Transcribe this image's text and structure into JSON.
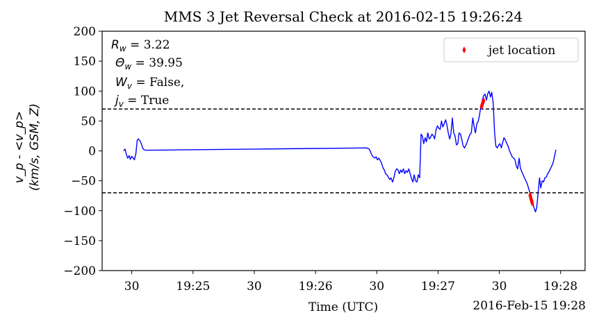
{
  "chart_data": {
    "type": "line",
    "title": "MMS 3 Jet Reversal Check at 2016-02-15 19:26:24",
    "xlabel": "Time (UTC)",
    "ylabel_line1": "v_p - <v_p>",
    "ylabel_line2": "(km/s, GSM, Z)",
    "x_unit": "seconds after 2016-02-15 19:24:00",
    "xlim": [
      15.5,
      252
    ],
    "ylim": [
      -200,
      200
    ],
    "x_ticks": [
      {
        "x": 30,
        "label": "30"
      },
      {
        "x": 60,
        "label": "19:25"
      },
      {
        "x": 90,
        "label": "30"
      },
      {
        "x": 120,
        "label": "19:26"
      },
      {
        "x": 150,
        "label": "30"
      },
      {
        "x": 180,
        "label": "19:27"
      },
      {
        "x": 210,
        "label": "30"
      },
      {
        "x": 240,
        "label": "19:28"
      }
    ],
    "x_offset_label": "2016-Feb-15 19:28",
    "y_ticks": [
      200,
      150,
      100,
      50,
      0,
      -50,
      -100,
      -150,
      -200
    ],
    "thresholds": [
      70,
      -70
    ],
    "annotation": {
      "r_label": "R",
      "r_sub": "w",
      "r_value": " = 3.22",
      "theta_label": "Θ",
      "theta_sub": "w",
      "theta_value": " = 39.95",
      "w_label": "W",
      "w_sub": "v",
      "w_value": " = False,",
      "j_label": "j",
      "j_sub": "v",
      "j_value": " = True"
    },
    "legend": {
      "label": "jet location",
      "position": "upper right"
    },
    "series": [
      {
        "name": "v_p - <v_p>",
        "color": "#0000ff",
        "points": [
          [
            26.0,
            0
          ],
          [
            26.7,
            3
          ],
          [
            27.3,
            -5
          ],
          [
            28.0,
            -12
          ],
          [
            28.7,
            -8
          ],
          [
            29.3,
            -14
          ],
          [
            30.0,
            -9
          ],
          [
            30.7,
            -12
          ],
          [
            31.3,
            -15
          ],
          [
            32.0,
            -5
          ],
          [
            32.7,
            18
          ],
          [
            33.3,
            20
          ],
          [
            34.0,
            17
          ],
          [
            34.7,
            12
          ],
          [
            35.3,
            5
          ],
          [
            36.0,
            2
          ],
          [
            37.0,
            1
          ],
          [
            60.0,
            2
          ],
          [
            90.0,
            3
          ],
          [
            120.0,
            4
          ],
          [
            145.0,
            5
          ],
          [
            145.7,
            4
          ],
          [
            146.3,
            3
          ],
          [
            147.0,
            -2
          ],
          [
            147.7,
            -8
          ],
          [
            148.3,
            -10
          ],
          [
            149.0,
            -12
          ],
          [
            149.7,
            -10
          ],
          [
            150.3,
            -15
          ],
          [
            151.0,
            -12
          ],
          [
            151.7,
            -16
          ],
          [
            152.3,
            -20
          ],
          [
            153.0,
            -28
          ],
          [
            153.7,
            -32
          ],
          [
            154.3,
            -38
          ],
          [
            155.0,
            -40
          ],
          [
            155.7,
            -44
          ],
          [
            156.3,
            -48
          ],
          [
            157.0,
            -45
          ],
          [
            157.7,
            -52
          ],
          [
            158.3,
            -46
          ],
          [
            159.0,
            -35
          ],
          [
            159.7,
            -30
          ],
          [
            160.3,
            -31
          ],
          [
            161.0,
            -38
          ],
          [
            161.7,
            -32
          ],
          [
            162.3,
            -36
          ],
          [
            163.0,
            -30
          ],
          [
            163.7,
            -38
          ],
          [
            164.3,
            -33
          ],
          [
            165.0,
            -36
          ],
          [
            165.7,
            -30
          ],
          [
            166.3,
            -38
          ],
          [
            167.0,
            -46
          ],
          [
            167.7,
            -52
          ],
          [
            168.3,
            -40
          ],
          [
            169.0,
            -50
          ],
          [
            169.7,
            -52
          ],
          [
            170.3,
            -40
          ],
          [
            171.0,
            -45
          ],
          [
            171.7,
            28
          ],
          [
            172.3,
            25
          ],
          [
            173.0,
            12
          ],
          [
            173.7,
            22
          ],
          [
            174.3,
            15
          ],
          [
            175.0,
            30
          ],
          [
            175.7,
            20
          ],
          [
            176.3,
            22
          ],
          [
            177.0,
            28
          ],
          [
            177.7,
            25
          ],
          [
            178.3,
            20
          ],
          [
            179.0,
            35
          ],
          [
            179.7,
            42
          ],
          [
            180.3,
            38
          ],
          [
            181.0,
            36
          ],
          [
            181.7,
            50
          ],
          [
            182.3,
            40
          ],
          [
            183.0,
            45
          ],
          [
            183.7,
            52
          ],
          [
            184.3,
            44
          ],
          [
            185.0,
            30
          ],
          [
            185.7,
            20
          ],
          [
            186.3,
            28
          ],
          [
            187.0,
            55
          ],
          [
            187.7,
            30
          ],
          [
            188.3,
            25
          ],
          [
            189.0,
            10
          ],
          [
            189.7,
            12
          ],
          [
            190.3,
            30
          ],
          [
            191.0,
            28
          ],
          [
            191.7,
            18
          ],
          [
            192.3,
            8
          ],
          [
            193.0,
            5
          ],
          [
            193.7,
            10
          ],
          [
            194.3,
            15
          ],
          [
            195.0,
            22
          ],
          [
            195.7,
            28
          ],
          [
            196.3,
            30
          ],
          [
            197.0,
            55
          ],
          [
            197.7,
            40
          ],
          [
            198.3,
            30
          ],
          [
            199.0,
            45
          ],
          [
            199.7,
            50
          ],
          [
            200.3,
            60
          ],
          [
            201.0,
            75
          ],
          [
            201.7,
            85
          ],
          [
            202.3,
            92
          ],
          [
            203.0,
            95
          ],
          [
            203.7,
            85
          ],
          [
            204.3,
            95
          ],
          [
            205.0,
            100
          ],
          [
            205.7,
            90
          ],
          [
            206.3,
            98
          ],
          [
            207.0,
            80
          ],
          [
            207.7,
            30
          ],
          [
            208.3,
            8
          ],
          [
            209.0,
            5
          ],
          [
            209.7,
            10
          ],
          [
            210.3,
            12
          ],
          [
            211.0,
            5
          ],
          [
            211.7,
            15
          ],
          [
            212.3,
            22
          ],
          [
            213.0,
            18
          ],
          [
            213.7,
            12
          ],
          [
            214.3,
            8
          ],
          [
            215.0,
            0
          ],
          [
            215.7,
            -5
          ],
          [
            216.3,
            -10
          ],
          [
            217.0,
            -12
          ],
          [
            217.7,
            -15
          ],
          [
            218.3,
            -25
          ],
          [
            219.0,
            -30
          ],
          [
            219.7,
            -12
          ],
          [
            220.3,
            -28
          ],
          [
            221.0,
            -35
          ],
          [
            221.7,
            -40
          ],
          [
            222.3,
            -45
          ],
          [
            223.0,
            -50
          ],
          [
            223.7,
            -55
          ],
          [
            224.3,
            -62
          ],
          [
            225.0,
            -70
          ],
          [
            225.7,
            -80
          ],
          [
            226.3,
            -86
          ],
          [
            227.0,
            -95
          ],
          [
            227.7,
            -102
          ],
          [
            228.3,
            -95
          ],
          [
            229.0,
            -70
          ],
          [
            229.7,
            -45
          ],
          [
            230.3,
            -62
          ],
          [
            231.0,
            -50
          ],
          [
            231.7,
            -52
          ],
          [
            232.3,
            -45
          ],
          [
            233.0,
            -44
          ],
          [
            233.7,
            -38
          ],
          [
            234.3,
            -35
          ],
          [
            235.0,
            -30
          ],
          [
            235.7,
            -25
          ],
          [
            236.3,
            -20
          ],
          [
            237.0,
            -10
          ],
          [
            237.7,
            2
          ]
        ]
      }
    ],
    "jet_markers": [
      [
        201.3,
        74
      ],
      [
        201.5,
        76
      ],
      [
        201.7,
        78
      ],
      [
        201.9,
        80
      ],
      [
        202.1,
        82
      ],
      [
        202.3,
        84
      ],
      [
        225.1,
        -74
      ],
      [
        225.3,
        -77
      ],
      [
        225.5,
        -80
      ],
      [
        225.7,
        -82
      ],
      [
        225.9,
        -84
      ],
      [
        226.1,
        -87
      ]
    ],
    "colors": {
      "line": "#0000ff",
      "marker": "#ff0000",
      "threshold": "#000000"
    }
  }
}
